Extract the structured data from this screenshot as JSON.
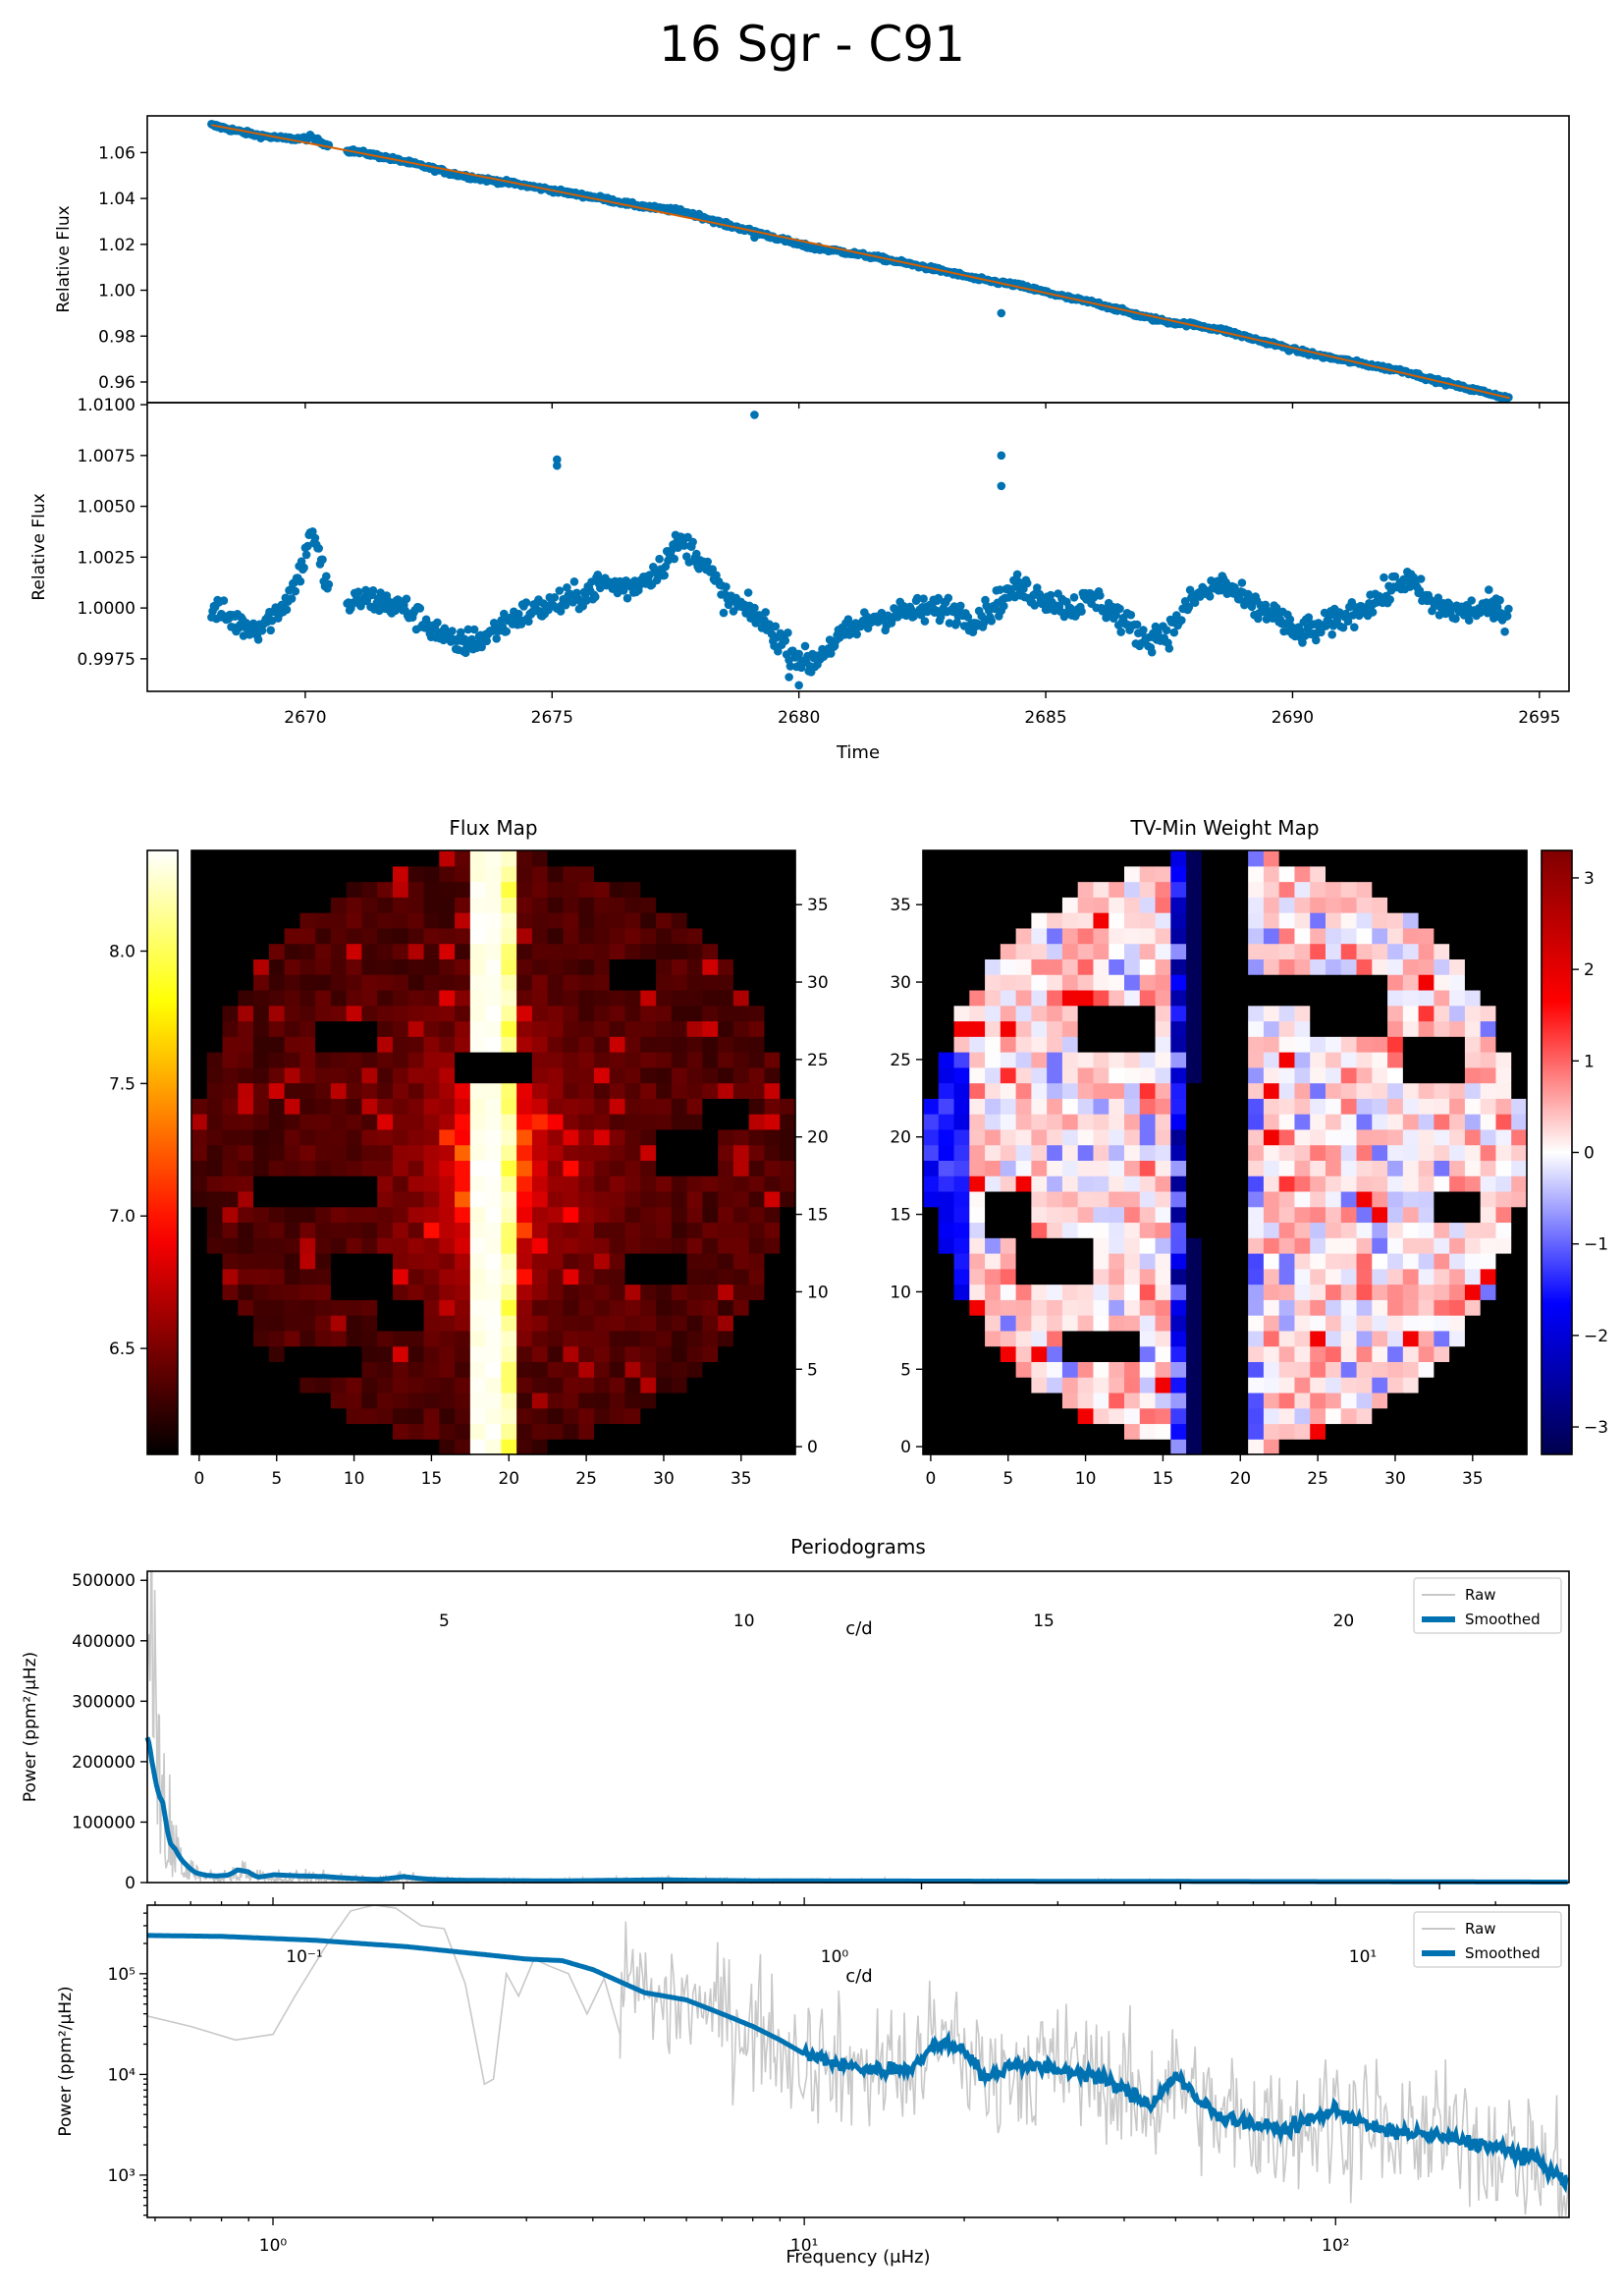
{
  "title": "16 Sgr - C91",
  "chart_data": [
    {
      "id": "lc_raw",
      "type": "scatter",
      "ylabel": "Relative Flux",
      "xlim": [
        2666.8,
        2695.6
      ],
      "ylim": [
        0.951,
        1.076
      ],
      "yticks": [
        0.96,
        0.98,
        1.0,
        1.02,
        1.04,
        1.06
      ],
      "ytick_labels": [
        "0.96",
        "0.98",
        "1.00",
        "1.02",
        "1.04",
        "1.06"
      ],
      "t_start": 2668.1,
      "t_end": 2694.4,
      "f_start": 1.072,
      "f_end": 0.953,
      "trend_curve": "quadratic",
      "series": [
        {
          "color": "#0072b2"
        },
        {
          "color": "#d55e00"
        }
      ]
    },
    {
      "id": "lc_detrended",
      "type": "scatter",
      "xlabel": "Time",
      "ylabel": "Relative Flux",
      "xlim": [
        2666.8,
        2695.6
      ],
      "ylim": [
        0.9959,
        1.0101
      ],
      "xticks": [
        2670,
        2675,
        2680,
        2685,
        2690,
        2695
      ],
      "xtick_labels": [
        "2670",
        "2675",
        "2680",
        "2685",
        "2690",
        "2695"
      ],
      "yticks": [
        0.9975,
        1.0,
        1.0025,
        1.005,
        1.0075,
        1.01
      ],
      "ytick_labels": [
        "0.9975",
        "1.0000",
        "1.0025",
        "1.0050",
        "1.0075",
        "1.0100"
      ],
      "t_start": 2668.1,
      "t_end": 2694.4,
      "profile_t": [
        2668.1,
        2668.6,
        2669.0,
        2669.3,
        2669.6,
        2669.8,
        2670.0,
        2670.1,
        2670.6,
        2671.2,
        2672.0,
        2672.6,
        2673.0,
        2673.6,
        2674.2,
        2674.8,
        2675.5,
        2676.0,
        2676.6,
        2677.2,
        2677.6,
        2678.0,
        2678.5,
        2679.2,
        2679.8,
        2680.2,
        2680.8,
        2681.5,
        2682.2,
        2683.0,
        2683.6,
        2684.4,
        2685.0,
        2685.5,
        2686.0,
        2686.5,
        2687.0,
        2687.5,
        2688.0,
        2688.6,
        2689.2,
        2689.6,
        2690.0,
        2690.6,
        2691.2,
        2691.8,
        2692.3,
        2692.8,
        2693.4,
        2694.0,
        2694.4
      ],
      "profile_f": [
        1.0,
        0.9993,
        0.999,
        0.9995,
        1.0003,
        1.0012,
        1.0025,
        1.004,
        0.9998,
        1.0005,
        1.0,
        0.999,
        0.9982,
        0.9985,
        0.9995,
        1.0,
        1.0005,
        1.0012,
        1.001,
        1.002,
        1.0033,
        1.0025,
        1.0005,
        0.9995,
        0.998,
        0.9972,
        0.9985,
        0.9995,
        0.9998,
        1.0,
        0.9994,
        1.001,
        1.0005,
        1.0,
        1.0005,
        0.9995,
        0.9985,
        0.9988,
        1.0005,
        1.0012,
        1.0,
        0.9998,
        0.9988,
        0.999,
        0.9998,
        1.0005,
        1.0015,
        1.0002,
        0.9998,
        1.0,
        0.9996
      ],
      "outliers": [
        [
          2675.1,
          1.0073
        ],
        [
          2675.1,
          1.007
        ],
        [
          2679.1,
          1.0095
        ],
        [
          2684.1,
          1.0075
        ],
        [
          2684.1,
          1.006
        ],
        [
          2680.0,
          0.9962
        ],
        [
          2679.8,
          0.9966
        ]
      ],
      "series": [
        {
          "color": "#0072b2"
        }
      ]
    },
    {
      "id": "flux_map",
      "type": "heatmap",
      "title": "Flux Map",
      "grid": [
        39,
        39
      ],
      "colormap": "hot",
      "colorbar_range": [
        6.1,
        8.38
      ],
      "colorbar_ticks": [
        6.5,
        7.0,
        7.5,
        8.0
      ],
      "colorbar_tick_labels": [
        "6.5",
        "7.0",
        "7.5",
        "8.0"
      ],
      "xticks": [
        0,
        5,
        10,
        15,
        20,
        25,
        30,
        35
      ],
      "xtick_labels": [
        "0",
        "5",
        "10",
        "15",
        "20",
        "25",
        "30",
        "35"
      ],
      "yticks": [
        0,
        5,
        10,
        15,
        20,
        25,
        30,
        35
      ],
      "ytick_labels": [
        "0",
        "5",
        "10",
        "15",
        "20",
        "25",
        "30",
        "35"
      ],
      "aperture_radius": 19.3,
      "bright_columns": [
        18,
        19,
        20
      ],
      "masked_blocks": [
        [
          4,
          16,
          8,
          2
        ],
        [
          9,
          10,
          4,
          3
        ],
        [
          6,
          5,
          5,
          2
        ],
        [
          17,
          24,
          5,
          2
        ],
        [
          27,
          30,
          3,
          2
        ],
        [
          8,
          26,
          4,
          2
        ],
        [
          28,
          11,
          4,
          2
        ],
        [
          30,
          18,
          4,
          3
        ],
        [
          12,
          8,
          3,
          2
        ],
        [
          33,
          21,
          3,
          2
        ]
      ]
    },
    {
      "id": "weight_map",
      "type": "heatmap",
      "title": "TV-Min Weight Map",
      "grid": [
        39,
        39
      ],
      "colormap": "seismic",
      "colorbar_range": [
        -3.3,
        3.3
      ],
      "colorbar_ticks": [
        -3,
        -2,
        -1,
        0,
        1,
        2,
        3
      ],
      "colorbar_tick_labels": [
        "−3",
        "−2",
        "−1",
        "0",
        "1",
        "2",
        "3"
      ],
      "xticks": [
        0,
        5,
        10,
        15,
        20,
        25,
        30,
        35
      ],
      "xtick_labels": [
        "0",
        "5",
        "10",
        "15",
        "20",
        "25",
        "30",
        "35"
      ],
      "yticks": [
        0,
        5,
        10,
        15,
        20,
        25,
        30,
        35
      ],
      "ytick_labels": [
        "0",
        "5",
        "10",
        "15",
        "20",
        "25",
        "30",
        "35"
      ],
      "aperture_radius": 19.3,
      "masked_blocks": [
        [
          6,
          11,
          5,
          3
        ],
        [
          10,
          26,
          5,
          3
        ],
        [
          25,
          27,
          5,
          4
        ],
        [
          4,
          14,
          3,
          3
        ],
        [
          21,
          29,
          4,
          2
        ],
        [
          9,
          6,
          5,
          2
        ],
        [
          31,
          24,
          4,
          3
        ],
        [
          33,
          15,
          3,
          2
        ]
      ]
    },
    {
      "id": "pg_linear",
      "type": "line",
      "title": "Periodograms",
      "ylabel": "Power (ppm²/μHz)",
      "xlim": [
        0.55,
        275
      ],
      "ylim": [
        0,
        515000
      ],
      "yticks": [
        0,
        100000,
        200000,
        300000,
        400000,
        500000
      ],
      "ytick_labels": [
        "0",
        "100000",
        "200000",
        "300000",
        "400000",
        "500000"
      ],
      "top_axis_label": "c/d",
      "top_ticks": [
        5,
        10,
        15,
        20
      ],
      "top_tick_labels": [
        "5",
        "10",
        "15",
        "20"
      ],
      "legend": [
        "Raw",
        "Smoothed"
      ],
      "legend_position": "upper right",
      "series": [
        {
          "color": "#c8c8c8"
        },
        {
          "color": "#0072b2"
        }
      ]
    },
    {
      "id": "pg_log",
      "type": "line",
      "xlabel": "Frequency (μHz)",
      "ylabel": "Power (ppm²/μHz)",
      "xscale": "log",
      "yscale": "log",
      "xlim": [
        0.58,
        275
      ],
      "ylim": [
        380,
        480000
      ],
      "xticks": [
        1,
        10,
        100
      ],
      "xtick_labels": [
        "10⁰",
        "10¹",
        "10²"
      ],
      "yticks": [
        1000,
        10000,
        100000
      ],
      "ytick_labels": [
        "10³",
        "10⁴",
        "10⁵"
      ],
      "top_axis_label": "c/d",
      "top_ticks": [
        0.1,
        1,
        10
      ],
      "top_tick_labels": [
        "10⁻¹",
        "10⁰",
        "10¹"
      ],
      "smooth_f": [
        0.58,
        0.8,
        1.2,
        1.8,
        2.5,
        3.0,
        3.5,
        4.0,
        5.0,
        6.0,
        7.0,
        8.0,
        9.0,
        10.0,
        12.0,
        14.0,
        16.0,
        18.0,
        20.0,
        22.0,
        25.0,
        30.0,
        35.0,
        40.0,
        45.0,
        50.0,
        55.0,
        60.0,
        70.0,
        80.0,
        100.0,
        120.0,
        150.0,
        200.0,
        240.0,
        275.0
      ],
      "smooth_p": [
        240000,
        235000,
        215000,
        185000,
        155000,
        140000,
        135000,
        110000,
        65000,
        55000,
        40000,
        30000,
        22000,
        16000,
        12000,
        11000,
        12000,
        21000,
        18000,
        9000,
        13000,
        11000,
        10000,
        7000,
        5000,
        10000,
        5500,
        4000,
        3200,
        2800,
        4500,
        2800,
        2500,
        1900,
        1400,
        800
      ],
      "raw_f": [
        0.58,
        0.7,
        0.85,
        1.0,
        1.1,
        1.25,
        1.4,
        1.55,
        1.7,
        1.9,
        2.1,
        2.3,
        2.5,
        2.6,
        2.75,
        2.9,
        3.1,
        3.3,
        3.6,
        3.9,
        4.2,
        4.5
      ],
      "raw_p": [
        38000,
        30000,
        22000,
        25000,
        60000,
        180000,
        420000,
        480000,
        450000,
        300000,
        280000,
        80000,
        8000,
        9000,
        100000,
        60000,
        140000,
        120000,
        100000,
        40000,
        90000,
        25000
      ],
      "legend": [
        "Raw",
        "Smoothed"
      ],
      "legend_position": "upper right",
      "series": [
        {
          "color": "#c8c8c8"
        },
        {
          "color": "#0072b2"
        }
      ]
    }
  ]
}
